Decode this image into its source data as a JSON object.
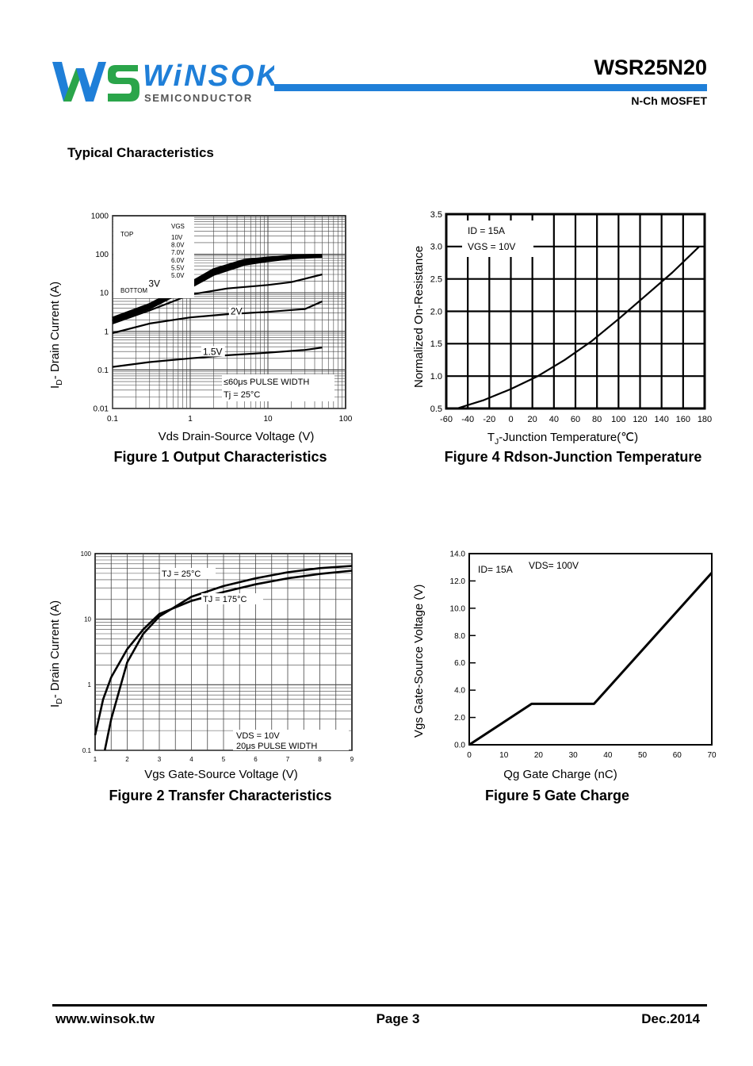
{
  "header": {
    "brand_name": "WiNSOK",
    "brand_tagline": "SEMICONDUCTOR",
    "brand_color": "#1f7fd8",
    "logo_green": "#2aa54a",
    "part_number": "WSR25N20",
    "part_type": "N-Ch MOSFET"
  },
  "section_title": "Typical Characteristics",
  "figures": {
    "fig1": {
      "caption": "Figure 1 Output Characteristics",
      "xlabel": "Vds Drain-Source Voltage (V)",
      "ylabel_main": "I",
      "ylabel_sub": "D",
      "ylabel_rest": "- Drain Current (A)",
      "xticks": [
        "0.1",
        "1",
        "10",
        "100"
      ],
      "yticks": [
        "1000",
        "100",
        "10",
        "1",
        "0.1",
        "0.01"
      ],
      "legend_top": "TOP",
      "legend_bottom": "BOTTOM",
      "legend_vgs_header": "VGS",
      "legend_vgs": [
        "10V",
        "8.0V",
        "7.0V",
        "6.0V",
        "5.5V",
        "5.0V"
      ],
      "curve_labels": [
        "3V",
        "2V",
        "1.5V"
      ],
      "note1": "≤60μs PULSE WIDTH",
      "note2": "Tj = 25°C"
    },
    "fig2": {
      "caption": "Figure 2 Transfer Characteristics",
      "xlabel": "Vgs Gate-Source Voltage (V)",
      "ylabel_main": "I",
      "ylabel_sub": "D",
      "ylabel_rest": "- Drain Current (A)",
      "xticks": [
        "1",
        "2",
        "3",
        "4",
        "5",
        "6",
        "7",
        "8",
        "9"
      ],
      "yticks": [
        "100",
        "10",
        "1",
        "0.1"
      ],
      "curve_labels": [
        "TJ = 25°C",
        "TJ = 175°C"
      ],
      "note1": "VDS = 10V",
      "note2": "20μs PULSE WIDTH"
    },
    "fig4": {
      "caption": "Figure 4 Rdson-Junction Temperature",
      "xlabel_main": "T",
      "xlabel_sub": "J",
      "xlabel_rest": "-Junction Temperature(℃)",
      "ylabel": "Normalized On-Resistance",
      "xticks": [
        "-60",
        "-40",
        "-20",
        "0",
        "20",
        "40",
        "60",
        "80",
        "100",
        "120",
        "140",
        "160",
        "180"
      ],
      "yticks": [
        "3.5",
        "3.0",
        "2.5",
        "2.0",
        "1.5",
        "1.0",
        "0.5"
      ],
      "note1": "ID = 15A",
      "note2": "VGS = 10V"
    },
    "fig5": {
      "caption": "Figure 5 Gate Charge",
      "xlabel": "Qg Gate Charge (nC)",
      "ylabel": "Vgs Gate-Source Voltage (V)",
      "xticks": [
        "0",
        "10",
        "20",
        "30",
        "40",
        "50",
        "60",
        "70"
      ],
      "yticks": [
        "14.0",
        "12.0",
        "10.0",
        "8.0",
        "6.0",
        "4.0",
        "2.0",
        "0.0"
      ],
      "note1": "ID= 15A",
      "note2": "VDS= 100V"
    }
  },
  "chart_data": [
    {
      "type": "line",
      "title": "Figure 1 Output Characteristics",
      "xlabel": "Vds Drain-Source Voltage (V)",
      "ylabel": "ID- Drain Current (A)",
      "xscale": "log",
      "yscale": "log",
      "xlim": [
        0.1,
        100
      ],
      "ylim": [
        0.01,
        1000
      ],
      "series": [
        {
          "name": "10V",
          "x": [
            0.1,
            0.3,
            1,
            2,
            5,
            10,
            20,
            50
          ],
          "y": [
            2.2,
            5,
            18,
            40,
            70,
            80,
            90,
            95
          ]
        },
        {
          "name": "5.0V",
          "x": [
            0.1,
            0.3,
            1,
            2,
            5,
            10,
            20,
            50
          ],
          "y": [
            1.8,
            4,
            14,
            30,
            55,
            68,
            80,
            88
          ]
        },
        {
          "name": "3V",
          "x": [
            0.1,
            0.3,
            0.6,
            1,
            3,
            10,
            20,
            50
          ],
          "y": [
            1.6,
            3.5,
            6,
            9,
            13,
            16,
            19,
            30
          ]
        },
        {
          "name": "2V",
          "x": [
            0.1,
            0.3,
            1,
            2,
            3,
            10,
            30,
            50
          ],
          "y": [
            0.9,
            1.6,
            2.3,
            2.6,
            2.8,
            3.2,
            3.8,
            6
          ]
        },
        {
          "name": "1.5V",
          "x": [
            0.1,
            0.3,
            1,
            3,
            10,
            30,
            50
          ],
          "y": [
            0.12,
            0.16,
            0.2,
            0.24,
            0.28,
            0.33,
            0.38
          ]
        }
      ],
      "grid": true
    },
    {
      "type": "line",
      "title": "Figure 2 Transfer Characteristics",
      "xlabel": "Vgs Gate-Source Voltage (V)",
      "ylabel": "ID- Drain Current (A)",
      "yscale": "log",
      "xlim": [
        1,
        9
      ],
      "ylim": [
        0.1,
        100
      ],
      "series": [
        {
          "name": "TJ = 25°C",
          "x": [
            1.3,
            1.5,
            2,
            2.5,
            3,
            4,
            5,
            6,
            7,
            8,
            9
          ],
          "y": [
            0.1,
            0.3,
            2.2,
            6,
            11,
            22,
            32,
            42,
            52,
            60,
            65
          ]
        },
        {
          "name": "TJ = 175°C",
          "x": [
            1,
            1.25,
            1.5,
            2,
            2.5,
            3,
            4,
            5,
            6,
            7,
            8,
            9
          ],
          "y": [
            0.17,
            0.6,
            1.3,
            3.5,
            7,
            12,
            19,
            26,
            34,
            42,
            49,
            55
          ]
        }
      ],
      "grid": true
    },
    {
      "type": "line",
      "title": "Figure 4 Rdson-Junction Temperature",
      "xlabel": "TJ-Junction Temperature(℃)",
      "ylabel": "Normalized On-Resistance",
      "xlim": [
        -60,
        180
      ],
      "ylim": [
        0.5,
        3.5
      ],
      "series": [
        {
          "name": "",
          "x": [
            -50,
            -25,
            0,
            25,
            50,
            75,
            100,
            125,
            150,
            175
          ],
          "y": [
            0.5,
            0.63,
            0.8,
            1.0,
            1.25,
            1.54,
            1.88,
            2.24,
            2.6,
            3.0
          ]
        }
      ],
      "grid": true
    },
    {
      "type": "line",
      "title": "Figure 5 Gate Charge",
      "xlabel": "Qg Gate Charge (nC)",
      "ylabel": "Vgs Gate-Source Voltage (V)",
      "xlim": [
        0,
        70
      ],
      "ylim": [
        0,
        14
      ],
      "series": [
        {
          "name": "",
          "x": [
            0,
            18,
            36,
            70
          ],
          "y": [
            0,
            3.0,
            3.0,
            12.6
          ]
        }
      ],
      "grid": true
    }
  ],
  "footer": {
    "website": "www.winsok.tw",
    "page": "Page  3",
    "date": "Dec.2014"
  }
}
